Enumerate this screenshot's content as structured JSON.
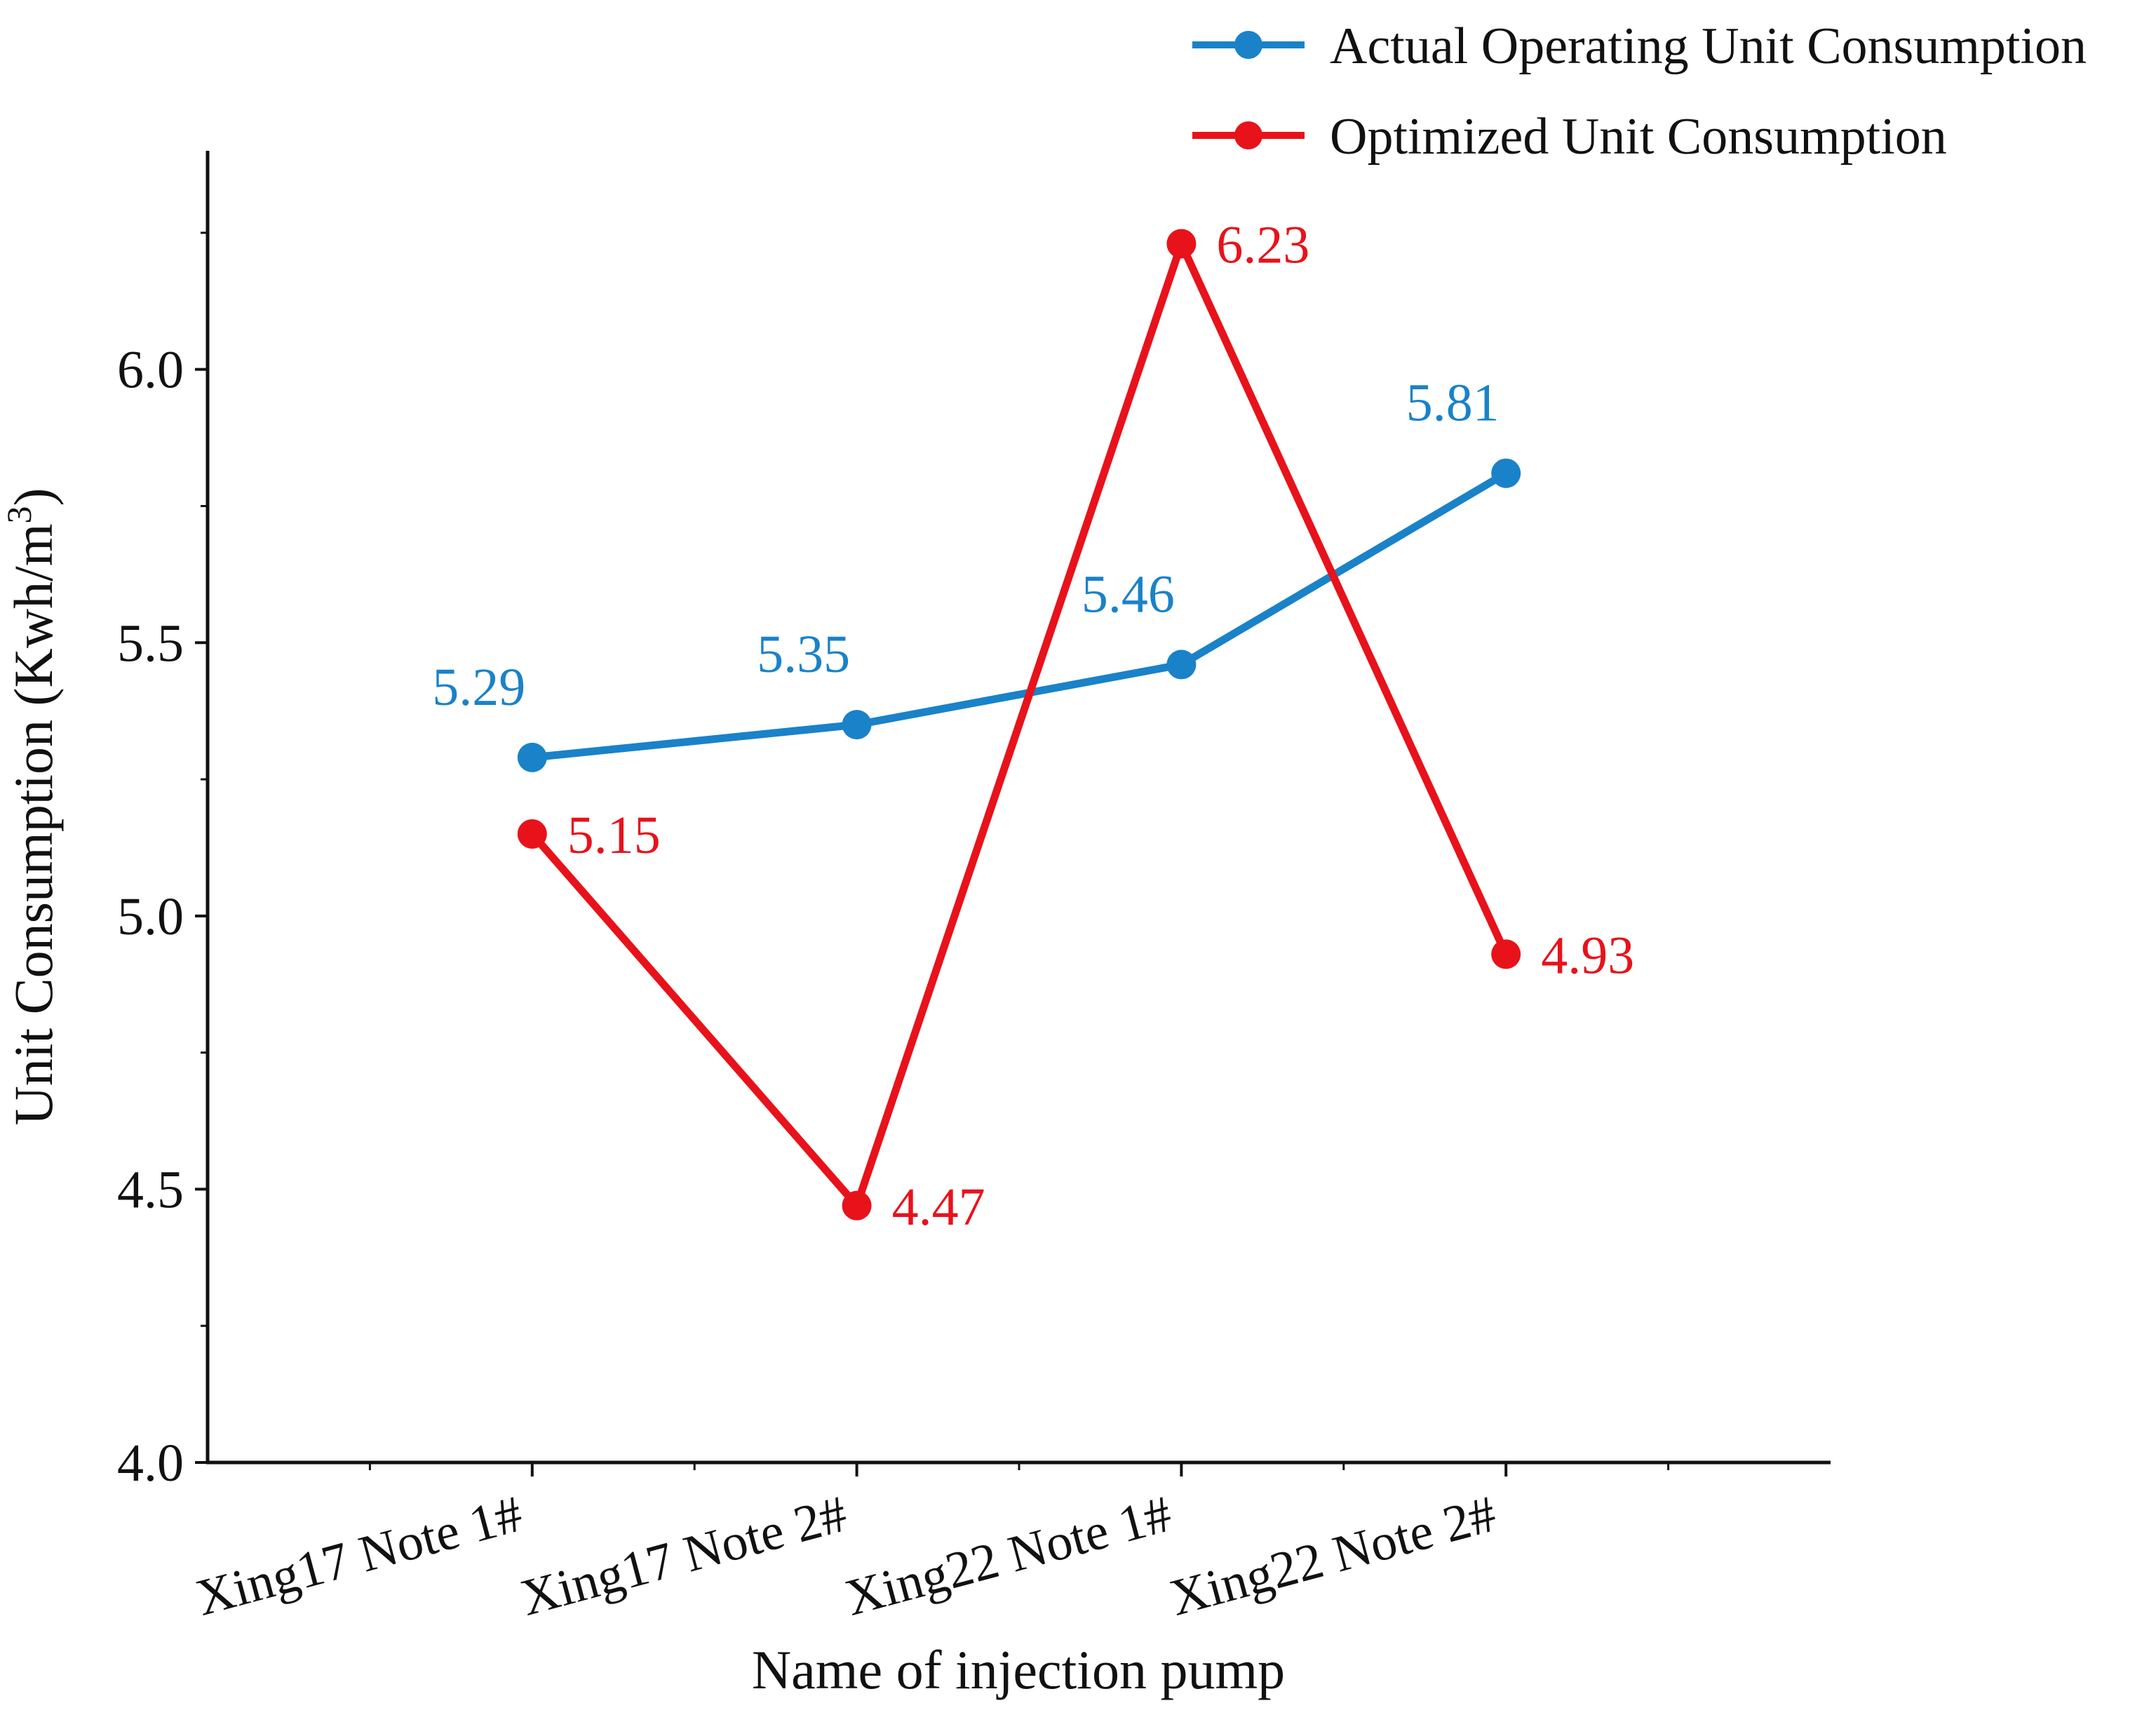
{
  "chart_data": {
    "type": "line",
    "categories": [
      "Xing17 Note 1#",
      "Xing17 Note 2#",
      "Xing22 Note 1#",
      "Xing22 Note 2#"
    ],
    "series": [
      {
        "name": "Actual Operating Unit Consumption",
        "color": "#1a82c8",
        "values": [
          5.29,
          5.35,
          5.46,
          5.81
        ],
        "labels": [
          "5.29",
          "5.35",
          "5.46",
          "5.81"
        ],
        "label_position": "above"
      },
      {
        "name": "Optimized Unit Consumption",
        "color": "#e8121b",
        "values": [
          5.15,
          4.47,
          6.23,
          4.93
        ],
        "labels": [
          "5.15",
          "4.47",
          "6.23",
          "4.93"
        ],
        "label_position": "right"
      }
    ],
    "xlabel": "Name of injection pump",
    "ylabel": "Unit Consumption (Kwh/m",
    "ylabel_superscript": "3",
    "ylabel_suffix": ")",
    "ylim": [
      4.0,
      6.4
    ],
    "yticks": [
      "4.0",
      "4.5",
      "5.0",
      "5.5",
      "6.0"
    ],
    "grid": false,
    "legend_position": "top-right"
  }
}
